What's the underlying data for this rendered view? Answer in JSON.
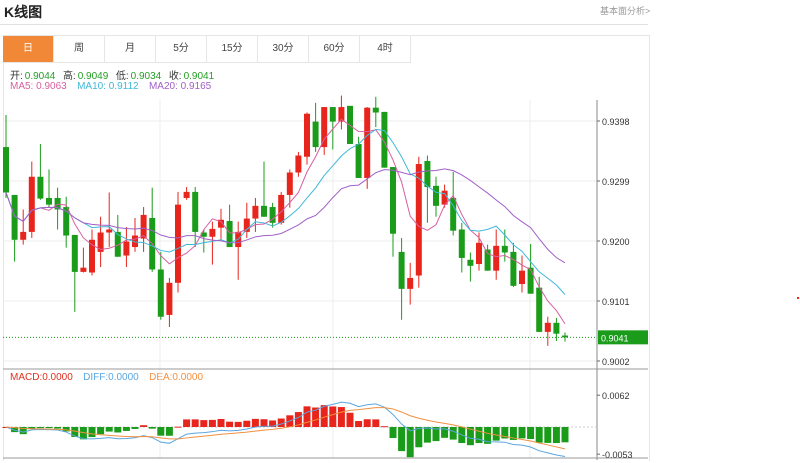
{
  "header": {
    "title": "K线图",
    "more_link": "基本面分析>"
  },
  "tabs": [
    {
      "label": "日",
      "active": true
    },
    {
      "label": "周"
    },
    {
      "label": "月"
    },
    {
      "label": "5分"
    },
    {
      "label": "15分"
    },
    {
      "label": "30分"
    },
    {
      "label": "60分"
    },
    {
      "label": "4时"
    }
  ],
  "ohlc_info": {
    "open_label": "开:",
    "open": "0.9044",
    "high_label": "高:",
    "high": "0.9049",
    "low_label": "低:",
    "low": "0.9034",
    "close_label": "收:",
    "close": "0.9041"
  },
  "ma_info": {
    "ma5": "MA5: 0.9063",
    "ma10": "MA10: 0.9112",
    "ma20": "MA20: 0.9165"
  },
  "macd_info": {
    "macd": "MACD:0.0000",
    "diff": "DIFF:0.0000",
    "dea": "DEA:0.0000"
  },
  "colors": {
    "up": "#e8251c",
    "down": "#1a9c1a",
    "ma5": "#d65fa0",
    "ma10": "#3fb8d8",
    "ma20": "#a060c8",
    "diff": "#5aa6e0",
    "dea": "#f09040",
    "accent": "#f08838"
  },
  "chart_data": {
    "type": "candlestick",
    "price_axis": {
      "ticks": [
        "0.9398",
        "0.9299",
        "0.9200",
        "0.9101",
        "0.9002"
      ],
      "range": [
        0.8955,
        0.944
      ],
      "current": "0.9041"
    },
    "macd_axis": {
      "ticks": [
        "0.0062",
        "-0.0053"
      ],
      "range": [
        -0.006,
        0.0083
      ]
    },
    "ohlc": [
      [
        0.9355,
        0.9408,
        0.9271,
        0.928
      ],
      [
        0.9276,
        0.9276,
        0.9166,
        0.9202
      ],
      [
        0.9202,
        0.9252,
        0.9194,
        0.9215
      ],
      [
        0.9215,
        0.9331,
        0.9205,
        0.9306
      ],
      [
        0.9306,
        0.936,
        0.9268,
        0.927
      ],
      [
        0.9271,
        0.9318,
        0.9256,
        0.926
      ],
      [
        0.9271,
        0.9288,
        0.9219,
        0.9252
      ],
      [
        0.9256,
        0.9273,
        0.9189,
        0.9209
      ],
      [
        0.921,
        0.921,
        0.9083,
        0.9149
      ],
      [
        0.9149,
        0.9189,
        0.9148,
        0.9156
      ],
      [
        0.9148,
        0.9219,
        0.9143,
        0.9202
      ],
      [
        0.9182,
        0.924,
        0.9157,
        0.9214
      ],
      [
        0.9214,
        0.928,
        0.919,
        0.9219
      ],
      [
        0.9215,
        0.9243,
        0.9174,
        0.9174
      ],
      [
        0.9176,
        0.9223,
        0.9157,
        0.9199
      ],
      [
        0.919,
        0.9238,
        0.9182,
        0.9209
      ],
      [
        0.9204,
        0.9256,
        0.9182,
        0.9243
      ],
      [
        0.9238,
        0.9288,
        0.9149,
        0.9153
      ],
      [
        0.9153,
        0.9182,
        0.907,
        0.9075
      ],
      [
        0.9078,
        0.9139,
        0.9058,
        0.9131
      ],
      [
        0.9131,
        0.9281,
        0.9115,
        0.926
      ],
      [
        0.9271,
        0.9289,
        0.9268,
        0.9281
      ],
      [
        0.9281,
        0.9289,
        0.919,
        0.9215
      ],
      [
        0.9214,
        0.9219,
        0.9181,
        0.9207
      ],
      [
        0.9207,
        0.9232,
        0.9161,
        0.922
      ],
      [
        0.9222,
        0.9253,
        0.9202,
        0.9235
      ],
      [
        0.9233,
        0.926,
        0.919,
        0.919
      ],
      [
        0.919,
        0.9232,
        0.9136,
        0.9215
      ],
      [
        0.9215,
        0.9263,
        0.9205,
        0.9237
      ],
      [
        0.9237,
        0.9271,
        0.9215,
        0.9258
      ],
      [
        0.9258,
        0.9331,
        0.924,
        0.924
      ],
      [
        0.9256,
        0.9263,
        0.9222,
        0.923
      ],
      [
        0.923,
        0.9281,
        0.9227,
        0.9276
      ],
      [
        0.9276,
        0.9318,
        0.9255,
        0.9313
      ],
      [
        0.9313,
        0.9347,
        0.9306,
        0.9341
      ],
      [
        0.9339,
        0.9412,
        0.9326,
        0.941
      ],
      [
        0.9397,
        0.9428,
        0.9347,
        0.9355
      ],
      [
        0.9355,
        0.9421,
        0.9342,
        0.9421
      ],
      [
        0.9421,
        0.9421,
        0.9351,
        0.9397
      ],
      [
        0.9397,
        0.944,
        0.9384,
        0.9421
      ],
      [
        0.9423,
        0.9423,
        0.936,
        0.936
      ],
      [
        0.936,
        0.9372,
        0.9304,
        0.9304
      ],
      [
        0.9304,
        0.9421,
        0.9286,
        0.942
      ],
      [
        0.942,
        0.9438,
        0.9388,
        0.9412
      ],
      [
        0.9413,
        0.9413,
        0.9321,
        0.9321
      ],
      [
        0.9322,
        0.9322,
        0.9174,
        0.9212
      ],
      [
        0.9182,
        0.9205,
        0.907,
        0.9121
      ],
      [
        0.9121,
        0.9164,
        0.9095,
        0.9139
      ],
      [
        0.9143,
        0.9339,
        0.9123,
        0.9327
      ],
      [
        0.9332,
        0.9341,
        0.923,
        0.9289
      ],
      [
        0.9291,
        0.9306,
        0.924,
        0.9258
      ],
      [
        0.926,
        0.9293,
        0.9255,
        0.9283
      ],
      [
        0.9271,
        0.9314,
        0.9209,
        0.9217
      ],
      [
        0.9219,
        0.923,
        0.9148,
        0.9172
      ],
      [
        0.9169,
        0.9181,
        0.9133,
        0.9159
      ],
      [
        0.9162,
        0.9214,
        0.9151,
        0.9197
      ],
      [
        0.9186,
        0.9194,
        0.9151,
        0.9151
      ],
      [
        0.9151,
        0.9219,
        0.9136,
        0.9192
      ],
      [
        0.9192,
        0.9219,
        0.9166,
        0.9181
      ],
      [
        0.9182,
        0.9197,
        0.9124,
        0.9126
      ],
      [
        0.9129,
        0.9176,
        0.9115,
        0.9151
      ],
      [
        0.9156,
        0.9195,
        0.9113,
        0.9113
      ],
      [
        0.9123,
        0.9141,
        0.905,
        0.905
      ],
      [
        0.905,
        0.9075,
        0.9027,
        0.9065
      ],
      [
        0.9065,
        0.9073,
        0.9035,
        0.9047
      ],
      [
        0.9044,
        0.9049,
        0.9034,
        0.9041
      ]
    ]
  }
}
